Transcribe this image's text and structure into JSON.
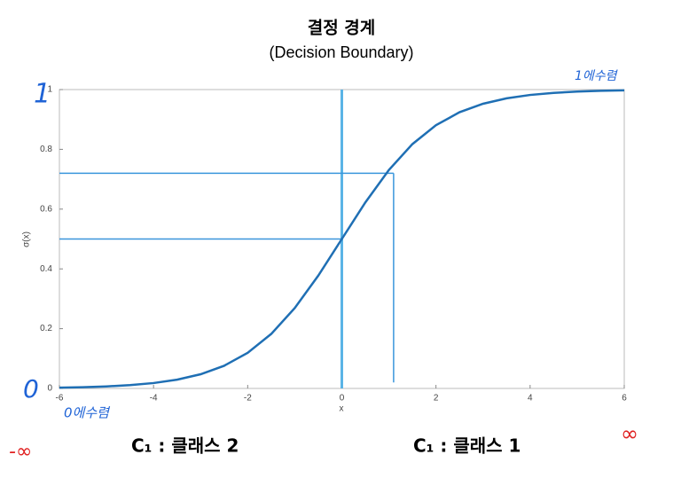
{
  "chart_data": {
    "type": "line",
    "title": "결정 경계",
    "subtitle": "(Decision Boundary)",
    "x_label": "x",
    "y_label": "σ(x)",
    "x": [
      -6,
      -5.5,
      -5,
      -4.5,
      -4,
      -3.5,
      -3,
      -2.5,
      -2,
      -1.5,
      -1,
      -0.5,
      0,
      0.5,
      1,
      1.5,
      2,
      2.5,
      3,
      3.5,
      4,
      4.5,
      5,
      5.5,
      6
    ],
    "series": [
      {
        "name": "σ(x)",
        "color": "#1f6fb4",
        "values": [
          0.0025,
          0.0041,
          0.0067,
          0.011,
          0.018,
          0.0293,
          0.0474,
          0.0759,
          0.1192,
          0.1824,
          0.2689,
          0.3775,
          0.5,
          0.6225,
          0.7311,
          0.8176,
          0.8808,
          0.9241,
          0.9526,
          0.9707,
          0.982,
          0.989,
          0.9933,
          0.9959,
          0.9975
        ]
      }
    ],
    "reference_lines": [
      {
        "x": [
          0,
          0
        ],
        "y": [
          0,
          1
        ],
        "color": "#5ab4e6"
      },
      {
        "x": [
          -6,
          0
        ],
        "y": [
          0.5,
          0.5
        ],
        "color": "#3a96dc"
      },
      {
        "x": [
          -6,
          1.1
        ],
        "y": [
          0.72,
          0.72
        ],
        "color": "#3a96dc"
      },
      {
        "x": [
          1.1,
          1.1
        ],
        "y": [
          0.72,
          0.02
        ],
        "color": "#3a96dc"
      }
    ],
    "xlim": [
      -6,
      6
    ],
    "ylim": [
      0,
      1
    ],
    "xticks": [
      -6,
      -4,
      -2,
      0,
      2,
      4,
      6
    ],
    "yticks": [
      0,
      0.2,
      0.4,
      0.6,
      0.8,
      1
    ],
    "annotations": [
      "1",
      "0",
      "0에수렴",
      "1에수렴",
      "-∞",
      "∞",
      "C₁ : 클래스 2",
      "C₁ : 클래스 1"
    ]
  }
}
